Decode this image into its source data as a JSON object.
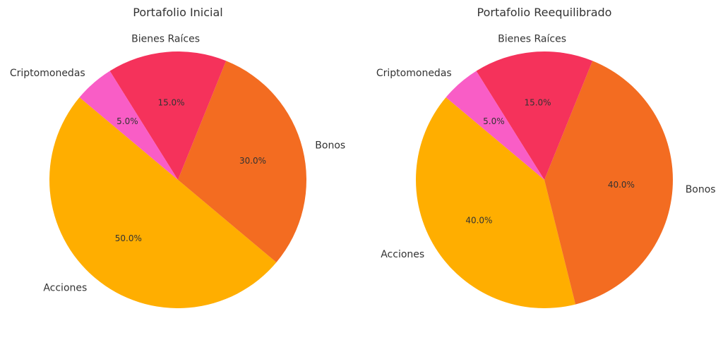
{
  "chart_data": [
    {
      "type": "pie",
      "title": "Portafolio Inicial",
      "slices": [
        {
          "label": "Acciones",
          "value": 50.0,
          "pct_label": "50.0%",
          "color": "#FFAE00"
        },
        {
          "label": "Bonos",
          "value": 30.0,
          "pct_label": "30.0%",
          "color": "#F36C21"
        },
        {
          "label": "Bienes Raíces",
          "value": 15.0,
          "pct_label": "15.0%",
          "color": "#F5325B"
        },
        {
          "label": "Criptomonedas",
          "value": 5.0,
          "pct_label": "5.0%",
          "color": "#F95DC6"
        }
      ],
      "start_angle_deg": 140,
      "direction": "counterclockwise"
    },
    {
      "type": "pie",
      "title": "Portafolio Reequilibrado",
      "slices": [
        {
          "label": "Acciones",
          "value": 40.0,
          "pct_label": "40.0%",
          "color": "#FFAE00"
        },
        {
          "label": "Bonos",
          "value": 40.0,
          "pct_label": "40.0%",
          "color": "#F36C21"
        },
        {
          "label": "Bienes Raíces",
          "value": 15.0,
          "pct_label": "15.0%",
          "color": "#F5325B"
        },
        {
          "label": "Criptomonedas",
          "value": 5.0,
          "pct_label": "5.0%",
          "color": "#F95DC6"
        }
      ],
      "start_angle_deg": 140,
      "direction": "counterclockwise"
    }
  ]
}
